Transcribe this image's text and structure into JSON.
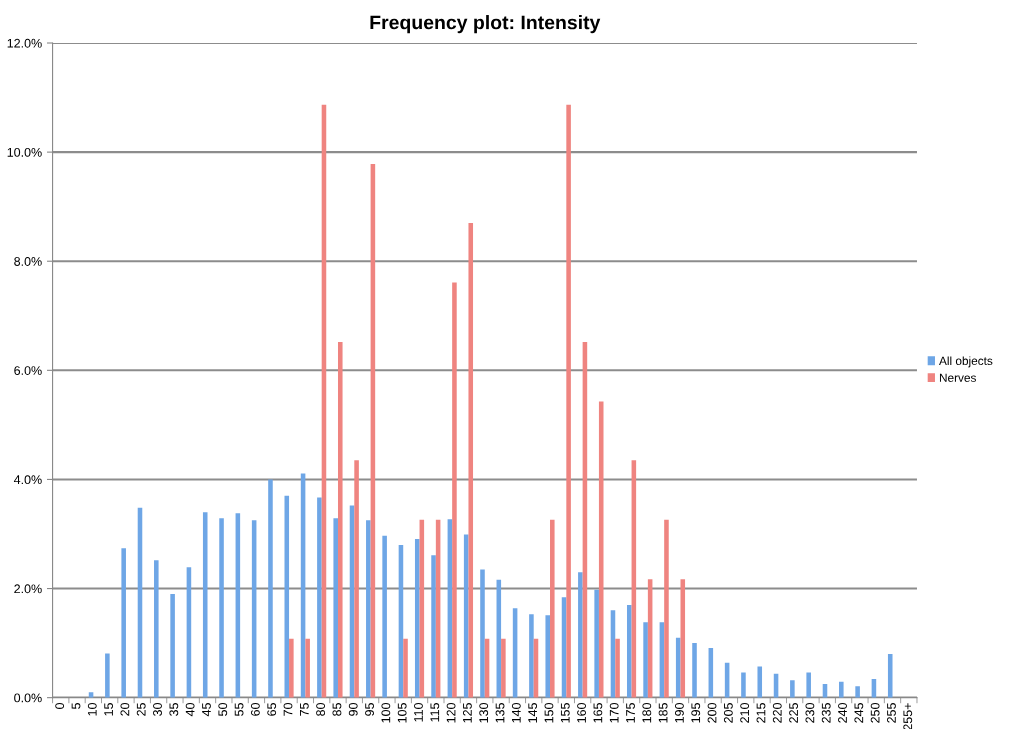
{
  "chart_data": {
    "type": "bar",
    "title": "Frequency plot: Intensity",
    "categories": [
      "0",
      "5",
      "10",
      "15",
      "20",
      "25",
      "30",
      "35",
      "40",
      "45",
      "50",
      "55",
      "60",
      "65",
      "70",
      "75",
      "80",
      "85",
      "90",
      "95",
      "100",
      "105",
      "110",
      "115",
      "120",
      "125",
      "130",
      "135",
      "140",
      "145",
      "150",
      "155",
      "160",
      "165",
      "170",
      "175",
      "180",
      "185",
      "190",
      "195",
      "200",
      "205",
      "210",
      "215",
      "220",
      "225",
      "230",
      "235",
      "240",
      "245",
      "250",
      "255",
      "255+"
    ],
    "series": [
      {
        "name": "All objects",
        "color": "#6ea6e6",
        "values": [
          0,
          0,
          0.1,
          0.81,
          2.74,
          3.48,
          2.52,
          1.9,
          2.39,
          3.4,
          3.29,
          3.38,
          3.25,
          4.0,
          3.7,
          4.11,
          3.67,
          3.29,
          3.52,
          3.25,
          2.97,
          2.8,
          2.91,
          2.61,
          3.27,
          2.99,
          2.35,
          2.16,
          1.64,
          1.53,
          1.51,
          1.84,
          2.3,
          1.98,
          1.6,
          1.7,
          1.38,
          1.38,
          1.1,
          1.0,
          0.91,
          0.64,
          0.46,
          0.57,
          0.44,
          0.32,
          0.46,
          0.25,
          0.29,
          0.21,
          0.34,
          0.8,
          0
        ]
      },
      {
        "name": "Nerves",
        "color": "#ef8480",
        "values": [
          0,
          0,
          0,
          0,
          0,
          0,
          0,
          0,
          0,
          0,
          0,
          0,
          0,
          0,
          1.08,
          1.08,
          10.87,
          6.52,
          4.35,
          9.78,
          0,
          1.08,
          3.26,
          3.26,
          7.61,
          8.7,
          1.08,
          1.08,
          0,
          1.08,
          3.26,
          10.87,
          6.52,
          5.43,
          1.08,
          4.35,
          2.17,
          3.26,
          2.17,
          0,
          0,
          0,
          0,
          0,
          0,
          0,
          0,
          0,
          0,
          0,
          0,
          0,
          0
        ]
      }
    ],
    "ylim": [
      0,
      12
    ],
    "yticks": [
      {
        "value": 0,
        "label": "0.0%"
      },
      {
        "value": 2,
        "label": "2.0%"
      },
      {
        "value": 4,
        "label": "4.0%"
      },
      {
        "value": 6,
        "label": "6.0%"
      },
      {
        "value": 8,
        "label": "8.0%"
      },
      {
        "value": 10,
        "label": "10.0%"
      },
      {
        "value": 12,
        "label": "12.0%"
      }
    ],
    "grid": "y",
    "legend": "right"
  }
}
